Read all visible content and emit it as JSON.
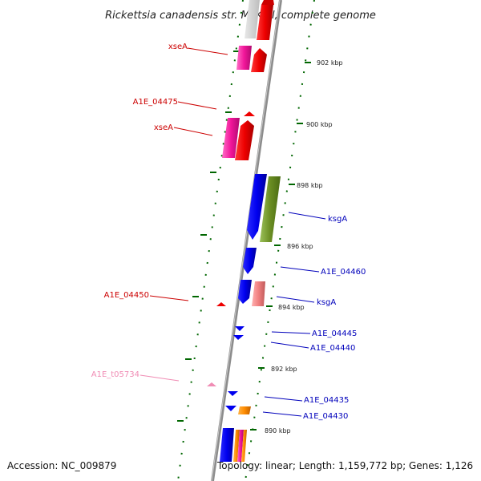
{
  "title": "Rickettsia canadensis str. McKiel, complete genome",
  "footer": {
    "accession": "Accession: NC_009879",
    "summary": "Topology: linear; Length: 1,159,772 bp; Genes: 1,126"
  },
  "colors": {
    "backbone": "#8c8c8c",
    "forward_label": "#cc0000",
    "reverse_label": "#0000bb",
    "rna_label": "#f08cb4",
    "tick": "#006600"
  },
  "scale_ticks": [
    "902 kbp",
    "900 kbp",
    "898 kbp",
    "896 kbp",
    "894 kbp",
    "892 kbp",
    "890 kbp"
  ],
  "gene_labels": [
    {
      "text": "xseA",
      "strand": "forward"
    },
    {
      "text": "A1E_04475",
      "strand": "forward"
    },
    {
      "text": "xseA",
      "strand": "forward"
    },
    {
      "text": "ksgA",
      "strand": "reverse"
    },
    {
      "text": "A1E_04460",
      "strand": "reverse"
    },
    {
      "text": "A1E_04450",
      "strand": "forward"
    },
    {
      "text": "ksgA",
      "strand": "reverse"
    },
    {
      "text": "A1E_04445",
      "strand": "reverse"
    },
    {
      "text": "A1E_04440",
      "strand": "reverse"
    },
    {
      "text": "A1E_t05734",
      "strand": "rna"
    },
    {
      "text": "A1E_04435",
      "strand": "reverse"
    },
    {
      "text": "A1E_04430",
      "strand": "reverse"
    }
  ]
}
